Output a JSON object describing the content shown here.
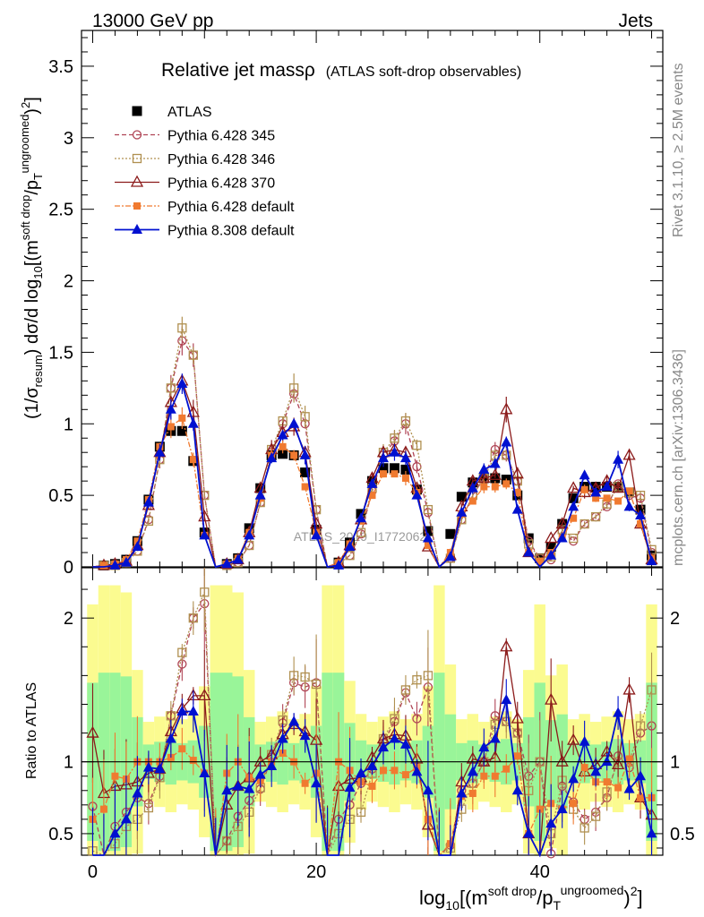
{
  "header": {
    "left": "13000 GeV pp",
    "right": "Jets"
  },
  "plot_title": {
    "main": "Relative jet massρ",
    "sub": "(ATLAS soft-drop observables)"
  },
  "side_labels": {
    "rivet": "Rivet 3.1.10, ≥ 2.5M events",
    "mcplots": "mcplots.cern.ch [arXiv:1306.3436]"
  },
  "watermark": "ATLAS_2019_I1772062",
  "colors": {
    "atlas": "#000000",
    "p345": "#b04455",
    "p346": "#b09050",
    "p370": "#8b1a1a",
    "p6def": "#f07a30",
    "p8def": "#0010d0",
    "band_inner": "#99f599",
    "band_outer": "#fbfb90"
  },
  "chart_data": [
    {
      "type": "line",
      "panel": "main",
      "title": "Relative jet massρ",
      "ylabel": "(1/σresum) dσ/d log10[(msoft drop/pTungroomed)2]",
      "ylabel_parts": {
        "pre": "(1/σ",
        "sub1": "resum",
        "mid": ") dσ/d log",
        "sub2": "10",
        "bracket": "[(m",
        "sup1": "soft drop",
        "slash": "/p",
        "sub3": "T",
        "sup2": "ungroomed",
        "close": ")",
        "sup3": "2",
        "end": "]"
      },
      "xlim": [
        -1,
        51
      ],
      "ylim": [
        0,
        3.75
      ],
      "yticks": [
        "3.5",
        "3",
        "2.5",
        "2",
        "1.5",
        "1",
        "0.5",
        "0"
      ],
      "yticks_values": [
        3.5,
        3,
        2.5,
        2,
        1.5,
        1,
        0.5,
        0
      ],
      "legend_position": "top-left",
      "series": [
        {
          "name": "ATLAS",
          "marker": "square-filled",
          "values": [
            0.0,
            0.01,
            0.02,
            0.05,
            0.18,
            0.47,
            0.84,
            0.95,
            0.95,
            0.74,
            0.24,
            0.0,
            0.02,
            0.06,
            0.27,
            0.55,
            0.78,
            0.79,
            0.78,
            0.66,
            0.26,
            0.0,
            0.03,
            0.17,
            0.37,
            0.6,
            0.69,
            0.69,
            0.68,
            0.54,
            0.25,
            0.0,
            0.23,
            0.49,
            0.59,
            0.62,
            0.62,
            0.61,
            0.5,
            0.2,
            0.06,
            0.14,
            0.3,
            0.48,
            0.56,
            0.56,
            0.56,
            0.56,
            0.52,
            0.4,
            0.08
          ]
        },
        {
          "name": "Pythia 6.428 345",
          "marker": "circle-open",
          "values": [
            0.0,
            0.01,
            0.01,
            0.03,
            0.11,
            0.33,
            0.75,
            1.25,
            1.58,
            1.48,
            0.5,
            0.0,
            0.01,
            0.03,
            0.15,
            0.45,
            0.8,
            1.0,
            1.21,
            1.0,
            0.4,
            0.0,
            0.02,
            0.08,
            0.23,
            0.53,
            0.78,
            0.88,
            1.0,
            0.7,
            0.38,
            0.0,
            0.06,
            0.33,
            0.5,
            0.62,
            0.82,
            0.78,
            0.6,
            0.18,
            0.06,
            0.05,
            0.25,
            0.18,
            0.3,
            0.35,
            0.42,
            0.58,
            0.5,
            0.48,
            0.1
          ]
        },
        {
          "name": "Pythia 6.428 346",
          "marker": "square-open",
          "values": [
            0.0,
            0.01,
            0.01,
            0.03,
            0.11,
            0.32,
            0.75,
            1.25,
            1.67,
            1.48,
            0.5,
            0.0,
            0.01,
            0.03,
            0.15,
            0.45,
            0.82,
            1.02,
            1.25,
            1.05,
            0.4,
            0.0,
            0.02,
            0.08,
            0.24,
            0.55,
            0.8,
            0.9,
            1.02,
            0.85,
            0.4,
            0.0,
            0.06,
            0.33,
            0.5,
            0.62,
            0.78,
            0.78,
            0.6,
            0.16,
            0.06,
            0.07,
            0.26,
            0.2,
            0.3,
            0.35,
            0.44,
            0.56,
            0.52,
            0.5,
            0.12
          ]
        },
        {
          "name": "Pythia 6.428 370",
          "marker": "triangle-open",
          "values": [
            0.0,
            0.01,
            0.02,
            0.04,
            0.15,
            0.43,
            0.8,
            1.15,
            1.3,
            1.08,
            0.35,
            0.0,
            0.02,
            0.05,
            0.24,
            0.55,
            0.82,
            0.94,
            0.98,
            0.8,
            0.3,
            0.0,
            0.03,
            0.15,
            0.33,
            0.62,
            0.8,
            0.82,
            0.8,
            0.55,
            0.14,
            0.0,
            0.08,
            0.42,
            0.6,
            0.62,
            0.64,
            1.1,
            0.65,
            0.1,
            0.0,
            0.2,
            0.3,
            0.55,
            0.52,
            0.55,
            0.6,
            0.55,
            0.78,
            0.3,
            0.05
          ]
        },
        {
          "name": "Pythia 6.428 default",
          "marker": "square-filled-small",
          "values": [
            0.0,
            0.01,
            0.02,
            0.05,
            0.18,
            0.47,
            0.84,
            0.98,
            1.04,
            0.75,
            0.22,
            0.0,
            0.02,
            0.06,
            0.24,
            0.48,
            0.78,
            0.84,
            0.78,
            0.56,
            0.24,
            0.0,
            0.03,
            0.16,
            0.32,
            0.5,
            0.65,
            0.65,
            0.62,
            0.52,
            0.15,
            0.0,
            0.1,
            0.37,
            0.46,
            0.56,
            0.56,
            0.58,
            0.52,
            0.1,
            0.04,
            0.1,
            0.2,
            0.34,
            0.54,
            0.48,
            0.48,
            0.46,
            0.53,
            0.3,
            0.06
          ]
        },
        {
          "name": "Pythia 8.308 default",
          "marker": "triangle-filled",
          "values": [
            0.0,
            0.0,
            0.01,
            0.03,
            0.14,
            0.45,
            0.8,
            1.1,
            1.28,
            1.0,
            0.22,
            0.0,
            0.02,
            0.05,
            0.22,
            0.5,
            0.76,
            0.92,
            1.0,
            0.78,
            0.22,
            0.0,
            0.01,
            0.14,
            0.34,
            0.58,
            0.76,
            0.8,
            0.76,
            0.5,
            0.2,
            0.0,
            0.07,
            0.38,
            0.55,
            0.68,
            0.72,
            0.87,
            0.4,
            0.1,
            0.0,
            0.08,
            0.2,
            0.42,
            0.64,
            0.52,
            0.56,
            0.75,
            0.42,
            0.36,
            0.04
          ]
        }
      ]
    },
    {
      "type": "line",
      "panel": "ratio",
      "ylabel": "Ratio to ATLAS",
      "xlabel": "log10[(msoft drop/pTungroomed)2]",
      "xlabel_parts": {
        "pre": "log",
        "sub1": "10",
        "bracket": "[(m",
        "sup1": "soft drop",
        "slash": "/p",
        "sub2": "T",
        "sup2": "ungroomed",
        "close": ")",
        "sup3": "2",
        "end": "]"
      },
      "xlim": [
        -1,
        51
      ],
      "ylim": [
        0.35,
        2.35
      ],
      "xticks": [
        "0",
        "20",
        "40"
      ],
      "xticks_values": [
        0,
        20,
        40
      ],
      "yticks": [
        "2",
        "1",
        "0.5"
      ],
      "yticks_values": [
        2,
        1,
        0.5
      ],
      "reference_line": 1,
      "series": [
        {
          "name": "Pythia 6.428 345",
          "values": [
            0.69,
            0.35,
            0.55,
            0.65,
            0.75,
            0.71,
            0.9,
            1.32,
            1.68,
            2.0,
            2.1,
            0.35,
            0.45,
            0.62,
            0.73,
            0.81,
            1.03,
            1.27,
            1.55,
            1.52,
            1.55,
            0.35,
            0.6,
            0.7,
            0.85,
            0.95,
            1.13,
            1.28,
            1.48,
            1.3,
            1.52,
            0.35,
            0.42,
            0.8,
            0.85,
            1.0,
            1.32,
            1.28,
            1.2,
            0.9,
            1.0,
            0.36,
            0.83,
            0.72,
            0.6,
            0.65,
            0.75,
            1.04,
            0.96,
            1.2,
            1.25
          ]
        },
        {
          "name": "Pythia 6.428 346",
          "values": [
            0.38,
            0.35,
            0.43,
            0.55,
            0.6,
            0.68,
            0.89,
            1.32,
            1.76,
            2.0,
            2.18,
            0.35,
            0.45,
            0.55,
            0.65,
            0.82,
            1.05,
            1.29,
            1.6,
            1.59,
            1.54,
            0.35,
            0.5,
            0.6,
            0.65,
            0.92,
            1.16,
            1.3,
            1.5,
            1.57,
            1.6,
            0.35,
            0.4,
            0.67,
            0.85,
            1.0,
            1.26,
            1.28,
            1.2,
            0.8,
            1.0,
            0.5,
            0.87,
            0.67,
            0.54,
            0.62,
            0.79,
            1.0,
            1.0,
            1.25,
            1.5
          ]
        },
        {
          "name": "Pythia 6.428 370",
          "values": [
            1.2,
            0.78,
            0.83,
            0.84,
            0.86,
            0.92,
            0.95,
            1.21,
            1.37,
            1.46,
            1.46,
            0.35,
            0.7,
            0.83,
            0.89,
            1.0,
            1.05,
            1.19,
            1.26,
            1.21,
            1.15,
            0.35,
            0.83,
            0.88,
            0.89,
            1.03,
            1.16,
            1.19,
            1.18,
            1.02,
            0.56,
            0.35,
            0.35,
            0.86,
            1.02,
            1.0,
            1.03,
            1.8,
            1.3,
            0.5,
            0.35,
            1.43,
            1.0,
            1.15,
            0.93,
            0.98,
            1.07,
            0.98,
            1.5,
            0.75,
            0.63
          ]
        },
        {
          "name": "Pythia 6.428 default",
          "values": [
            0.6,
            0.67,
            0.9,
            0.88,
            1.0,
            1.0,
            1.0,
            1.03,
            1.09,
            1.01,
            0.92,
            0.35,
            0.92,
            1.0,
            0.89,
            0.87,
            1.0,
            1.06,
            1.0,
            0.85,
            0.92,
            0.35,
            1.0,
            0.94,
            0.86,
            0.83,
            0.94,
            0.94,
            0.91,
            0.96,
            0.6,
            0.35,
            0.43,
            0.76,
            0.78,
            0.9,
            0.9,
            0.95,
            1.04,
            0.5,
            0.67,
            0.71,
            0.67,
            0.71,
            0.96,
            0.86,
            0.86,
            0.82,
            1.02,
            0.75,
            0.75
          ]
        },
        {
          "name": "Pythia 8.308 default",
          "values": [
            0.35,
            0.35,
            0.5,
            0.6,
            0.78,
            0.96,
            0.95,
            1.16,
            1.35,
            1.35,
            0.92,
            0.35,
            0.8,
            0.83,
            0.81,
            0.91,
            0.97,
            1.16,
            1.28,
            1.18,
            0.85,
            0.35,
            0.33,
            0.82,
            0.92,
            0.97,
            1.1,
            1.16,
            1.12,
            0.93,
            0.8,
            0.35,
            0.3,
            0.78,
            0.93,
            1.1,
            1.16,
            1.43,
            0.8,
            0.5,
            0.35,
            0.57,
            0.67,
            0.88,
            1.14,
            0.93,
            1.0,
            1.34,
            0.81,
            0.9,
            0.5
          ]
        }
      ]
    }
  ]
}
